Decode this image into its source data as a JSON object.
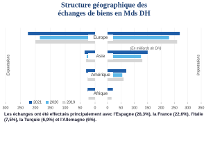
{
  "chart_data": {
    "type": "butterfly",
    "title": [
      "Structure géographique des",
      "échanges de biens en Mds DH"
    ],
    "categories": [
      "Europe",
      "Asie",
      "Amérique",
      "Afrique"
    ],
    "legend": [
      {
        "name": "2021",
        "color": "#1f5ea8"
      },
      {
        "name": "2020",
        "color": "#5cb8e8"
      },
      {
        "name": "2019",
        "color": "#d6d6d6"
      }
    ],
    "left": {
      "label": "Exportations",
      "xlim": [
        300,
        0
      ],
      "xticks": [
        300,
        250,
        200,
        150,
        100,
        50,
        0
      ],
      "values": [
        [
          225,
          35,
          30,
          25
        ],
        [
          185,
          28,
          20,
          22
        ],
        [
          200,
          30,
          25,
          22
        ]
      ]
    },
    "right": {
      "label": "Importations",
      "xlim": [
        0,
        350
      ],
      "xticks": [
        0,
        50,
        100,
        150,
        200,
        250,
        300,
        350
      ],
      "values": [
        [
          270,
          150,
          70,
          20
        ],
        [
          230,
          125,
          55,
          15
        ],
        [
          260,
          130,
          60,
          15
        ]
      ]
    },
    "note": "(En milliards de DH)",
    "grid": true
  },
  "caption": "Les échanges ont été effectués principalement avec l'Espagne (28,3%), la France (22,6%), l'Italie (7,5%), la Turquie (6,9%) et l'Allemagne (6%)."
}
